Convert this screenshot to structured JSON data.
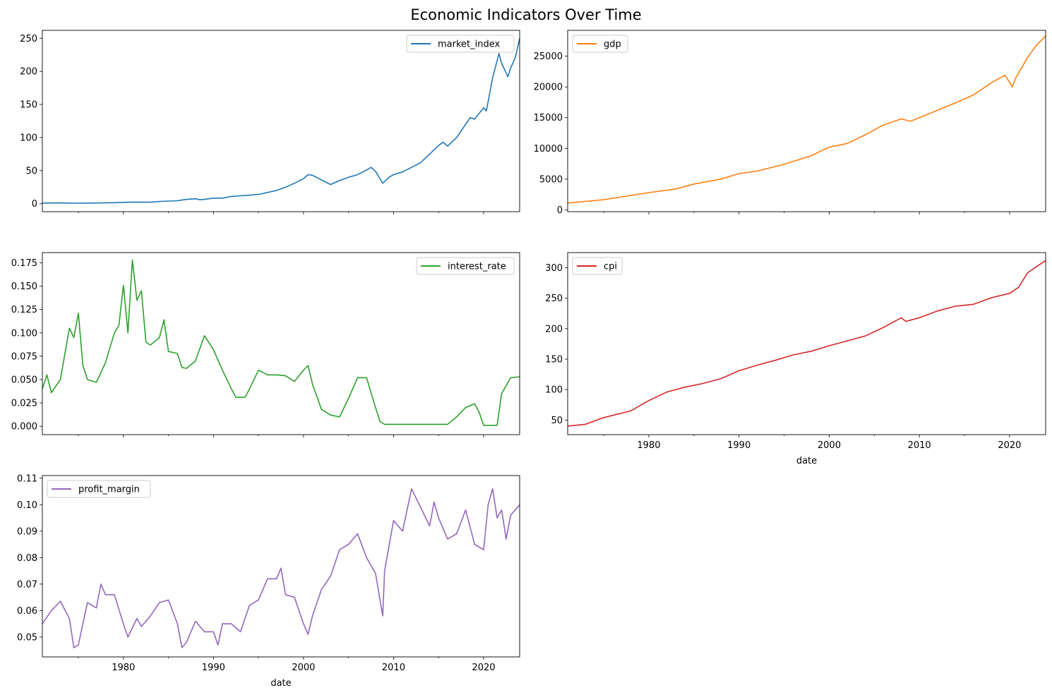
{
  "title": "Economic Indicators Over Time",
  "chart_data": [
    {
      "type": "line",
      "series_name": "market_index",
      "color": "#1f77b4",
      "xlim": [
        1971,
        2024
      ],
      "ylim": [
        -12,
        262
      ],
      "yticks": [
        0,
        50,
        100,
        150,
        200,
        250
      ],
      "ytick_labels": [
        "0",
        "50",
        "100",
        "150",
        "200",
        "250"
      ],
      "xticks": [
        1980,
        1990,
        2000,
        2010,
        2020
      ],
      "xtick_labels": [],
      "xlabel": "",
      "legend": "top-right",
      "points": [
        [
          1971,
          1.0
        ],
        [
          1973,
          1.2
        ],
        [
          1975,
          0.8
        ],
        [
          1977,
          1.1
        ],
        [
          1979,
          1.5
        ],
        [
          1981,
          2.5
        ],
        [
          1983,
          2.3
        ],
        [
          1984,
          3.5
        ],
        [
          1986,
          4.5
        ],
        [
          1987,
          6.5
        ],
        [
          1988,
          7.5
        ],
        [
          1988.5,
          6
        ],
        [
          1989,
          6.5
        ],
        [
          1990,
          8.5
        ],
        [
          1991,
          8.5
        ],
        [
          1992,
          11
        ],
        [
          1993,
          12
        ],
        [
          1994,
          13
        ],
        [
          1995,
          14
        ],
        [
          1996,
          17
        ],
        [
          1997,
          20
        ],
        [
          1998,
          25
        ],
        [
          1999,
          31
        ],
        [
          2000,
          38
        ],
        [
          2000.5,
          44
        ],
        [
          2001,
          43
        ],
        [
          2002,
          36
        ],
        [
          2003,
          29
        ],
        [
          2004,
          35
        ],
        [
          2005,
          40
        ],
        [
          2006,
          44
        ],
        [
          2007,
          51
        ],
        [
          2007.5,
          55
        ],
        [
          2008,
          49
        ],
        [
          2008.8,
          31
        ],
        [
          2009.5,
          40
        ],
        [
          2010,
          44
        ],
        [
          2011,
          48
        ],
        [
          2012,
          55
        ],
        [
          2013,
          62
        ],
        [
          2014,
          75
        ],
        [
          2015,
          88
        ],
        [
          2015.5,
          93
        ],
        [
          2016,
          87
        ],
        [
          2017,
          100
        ],
        [
          2018,
          120
        ],
        [
          2018.5,
          130
        ],
        [
          2019,
          128
        ],
        [
          2020,
          145
        ],
        [
          2020.3,
          140
        ],
        [
          2021,
          190
        ],
        [
          2021.7,
          227
        ],
        [
          2022,
          212
        ],
        [
          2022.7,
          192
        ],
        [
          2023,
          205
        ],
        [
          2023.5,
          220
        ],
        [
          2024,
          250
        ]
      ]
    },
    {
      "type": "line",
      "series_name": "gdp",
      "color": "#ff7f0e",
      "xlim": [
        1971,
        2024
      ],
      "ylim": [
        -300,
        29200
      ],
      "yticks": [
        0,
        5000,
        10000,
        15000,
        20000,
        25000
      ],
      "ytick_labels": [
        "0",
        "5000",
        "10000",
        "15000",
        "20000",
        "25000"
      ],
      "xticks": [
        1980,
        1990,
        2000,
        2010,
        2020
      ],
      "xtick_labels": [],
      "xlabel": "",
      "legend": "top-left",
      "points": [
        [
          1971,
          1100
        ],
        [
          1975,
          1650
        ],
        [
          1980,
          2800
        ],
        [
          1983,
          3400
        ],
        [
          1985,
          4200
        ],
        [
          1988,
          5000
        ],
        [
          1990,
          5900
        ],
        [
          1992,
          6300
        ],
        [
          1995,
          7400
        ],
        [
          1998,
          8800
        ],
        [
          2000,
          10200
        ],
        [
          2002,
          10800
        ],
        [
          2004,
          12200
        ],
        [
          2006,
          13800
        ],
        [
          2008,
          14800
        ],
        [
          2009,
          14400
        ],
        [
          2010,
          15000
        ],
        [
          2012,
          16200
        ],
        [
          2014,
          17400
        ],
        [
          2016,
          18700
        ],
        [
          2018,
          20700
        ],
        [
          2019.5,
          21900
        ],
        [
          2020.3,
          20000
        ],
        [
          2020.7,
          21500
        ],
        [
          2022,
          24800
        ],
        [
          2023,
          26800
        ],
        [
          2024,
          28300
        ]
      ]
    },
    {
      "type": "line",
      "series_name": "interest_rate",
      "color": "#2ca02c",
      "xlim": [
        1971,
        2024
      ],
      "ylim": [
        -0.009,
        0.186
      ],
      "yticks": [
        0.0,
        0.025,
        0.05,
        0.075,
        0.1,
        0.125,
        0.15,
        0.175
      ],
      "ytick_labels": [
        "0.000",
        "0.025",
        "0.050",
        "0.075",
        "0.100",
        "0.125",
        "0.150",
        "0.175"
      ],
      "xticks": [
        1980,
        1990,
        2000,
        2010,
        2020
      ],
      "xtick_labels": [],
      "xlabel": "",
      "legend": "top-right",
      "points": [
        [
          1971,
          0.04
        ],
        [
          1971.5,
          0.055
        ],
        [
          1972,
          0.036
        ],
        [
          1973,
          0.05
        ],
        [
          1974,
          0.105
        ],
        [
          1974.5,
          0.095
        ],
        [
          1975,
          0.121
        ],
        [
          1975.5,
          0.065
        ],
        [
          1976,
          0.05
        ],
        [
          1977,
          0.047
        ],
        [
          1978,
          0.068
        ],
        [
          1979,
          0.1
        ],
        [
          1979.5,
          0.108
        ],
        [
          1980,
          0.151
        ],
        [
          1980.5,
          0.1
        ],
        [
          1981,
          0.178
        ],
        [
          1981.5,
          0.135
        ],
        [
          1982,
          0.145
        ],
        [
          1982.5,
          0.09
        ],
        [
          1983,
          0.087
        ],
        [
          1984,
          0.095
        ],
        [
          1984.5,
          0.114
        ],
        [
          1985,
          0.08
        ],
        [
          1986,
          0.078
        ],
        [
          1986.5,
          0.063
        ],
        [
          1987,
          0.062
        ],
        [
          1988,
          0.07
        ],
        [
          1989,
          0.097
        ],
        [
          1990,
          0.082
        ],
        [
          1991,
          0.06
        ],
        [
          1992,
          0.04
        ],
        [
          1992.5,
          0.031
        ],
        [
          1993.5,
          0.031
        ],
        [
          1994,
          0.04
        ],
        [
          1995,
          0.06
        ],
        [
          1996,
          0.055
        ],
        [
          1997,
          0.055
        ],
        [
          1998,
          0.054
        ],
        [
          1999,
          0.048
        ],
        [
          2000,
          0.06
        ],
        [
          2000.5,
          0.065
        ],
        [
          2001,
          0.045
        ],
        [
          2002,
          0.018
        ],
        [
          2003,
          0.012
        ],
        [
          2004,
          0.01
        ],
        [
          2005,
          0.03
        ],
        [
          2006,
          0.052
        ],
        [
          2007,
          0.052
        ],
        [
          2008,
          0.02
        ],
        [
          2008.5,
          0.005
        ],
        [
          2009,
          0.002
        ],
        [
          2016,
          0.002
        ],
        [
          2017,
          0.01
        ],
        [
          2018,
          0.02
        ],
        [
          2019,
          0.024
        ],
        [
          2019.5,
          0.015
        ],
        [
          2020,
          0.001
        ],
        [
          2021.5,
          0.001
        ],
        [
          2022,
          0.035
        ],
        [
          2023,
          0.052
        ],
        [
          2024,
          0.053
        ]
      ]
    },
    {
      "type": "line",
      "series_name": "cpi",
      "color": "#d62728",
      "xlim": [
        1971,
        2024
      ],
      "ylim": [
        26,
        325
      ],
      "yticks": [
        50,
        100,
        150,
        200,
        250,
        300
      ],
      "ytick_labels": [
        "50",
        "100",
        "150",
        "200",
        "250",
        "300"
      ],
      "xticks": [
        1980,
        1990,
        2000,
        2010,
        2020
      ],
      "xtick_labels": [
        "1980",
        "1990",
        "2000",
        "2010",
        "2020"
      ],
      "xlabel": "date",
      "legend": "top-left",
      "points": [
        [
          1971,
          40
        ],
        [
          1973,
          43
        ],
        [
          1975,
          54
        ],
        [
          1978,
          65
        ],
        [
          1980,
          82
        ],
        [
          1982,
          96
        ],
        [
          1984,
          104
        ],
        [
          1986,
          110
        ],
        [
          1988,
          118
        ],
        [
          1990,
          131
        ],
        [
          1992,
          140
        ],
        [
          1994,
          148
        ],
        [
          1996,
          157
        ],
        [
          1998,
          163
        ],
        [
          2000,
          172
        ],
        [
          2002,
          180
        ],
        [
          2004,
          188
        ],
        [
          2006,
          202
        ],
        [
          2008,
          218
        ],
        [
          2008.5,
          212
        ],
        [
          2010,
          218
        ],
        [
          2012,
          229
        ],
        [
          2014,
          237
        ],
        [
          2016,
          240
        ],
        [
          2018,
          251
        ],
        [
          2020,
          258
        ],
        [
          2021,
          268
        ],
        [
          2022,
          292
        ],
        [
          2024,
          312
        ]
      ]
    },
    {
      "type": "line",
      "series_name": "profit_margin",
      "color": "#9467bd",
      "xlim": [
        1971,
        2024
      ],
      "ylim": [
        0.0425,
        0.111
      ],
      "yticks": [
        0.05,
        0.06,
        0.07,
        0.08,
        0.09,
        0.1,
        0.11
      ],
      "ytick_labels": [
        "0.05",
        "0.06",
        "0.07",
        "0.08",
        "0.09",
        "0.10",
        "0.11"
      ],
      "xticks": [
        1980,
        1990,
        2000,
        2010,
        2020
      ],
      "xtick_labels": [
        "1980",
        "1990",
        "2000",
        "2010",
        "2020"
      ],
      "xlabel": "date",
      "legend": "top-left",
      "points": [
        [
          1971,
          0.055
        ],
        [
          1972,
          0.06
        ],
        [
          1973,
          0.0635
        ],
        [
          1974,
          0.057
        ],
        [
          1974.5,
          0.046
        ],
        [
          1975,
          0.047
        ],
        [
          1976,
          0.063
        ],
        [
          1977,
          0.061
        ],
        [
          1977.5,
          0.07
        ],
        [
          1978,
          0.066
        ],
        [
          1979,
          0.066
        ],
        [
          1980,
          0.055
        ],
        [
          1980.5,
          0.05
        ],
        [
          1981.5,
          0.057
        ],
        [
          1982,
          0.054
        ],
        [
          1983,
          0.058
        ],
        [
          1984,
          0.063
        ],
        [
          1985,
          0.064
        ],
        [
          1986,
          0.055
        ],
        [
          1986.5,
          0.046
        ],
        [
          1987,
          0.048
        ],
        [
          1988,
          0.056
        ],
        [
          1989,
          0.052
        ],
        [
          1990,
          0.052
        ],
        [
          1990.5,
          0.047
        ],
        [
          1991,
          0.055
        ],
        [
          1992,
          0.055
        ],
        [
          1993,
          0.052
        ],
        [
          1994,
          0.062
        ],
        [
          1995,
          0.064
        ],
        [
          1996,
          0.072
        ],
        [
          1997,
          0.072
        ],
        [
          1997.5,
          0.076
        ],
        [
          1998,
          0.066
        ],
        [
          1999,
          0.065
        ],
        [
          2000,
          0.055
        ],
        [
          2000.5,
          0.051
        ],
        [
          2001,
          0.058
        ],
        [
          2002,
          0.068
        ],
        [
          2003,
          0.073
        ],
        [
          2004,
          0.083
        ],
        [
          2005,
          0.085
        ],
        [
          2006,
          0.089
        ],
        [
          2007,
          0.08
        ],
        [
          2008,
          0.074
        ],
        [
          2008.8,
          0.058
        ],
        [
          2009,
          0.075
        ],
        [
          2010,
          0.094
        ],
        [
          2011,
          0.09
        ],
        [
          2012,
          0.106
        ],
        [
          2013,
          0.099
        ],
        [
          2014,
          0.092
        ],
        [
          2014.5,
          0.101
        ],
        [
          2015,
          0.095
        ],
        [
          2016,
          0.087
        ],
        [
          2017,
          0.089
        ],
        [
          2018,
          0.098
        ],
        [
          2019,
          0.085
        ],
        [
          2020,
          0.083
        ],
        [
          2020.5,
          0.1
        ],
        [
          2021,
          0.106
        ],
        [
          2021.5,
          0.095
        ],
        [
          2022,
          0.098
        ],
        [
          2022.5,
          0.087
        ],
        [
          2023,
          0.096
        ],
        [
          2024,
          0.1
        ]
      ]
    }
  ]
}
